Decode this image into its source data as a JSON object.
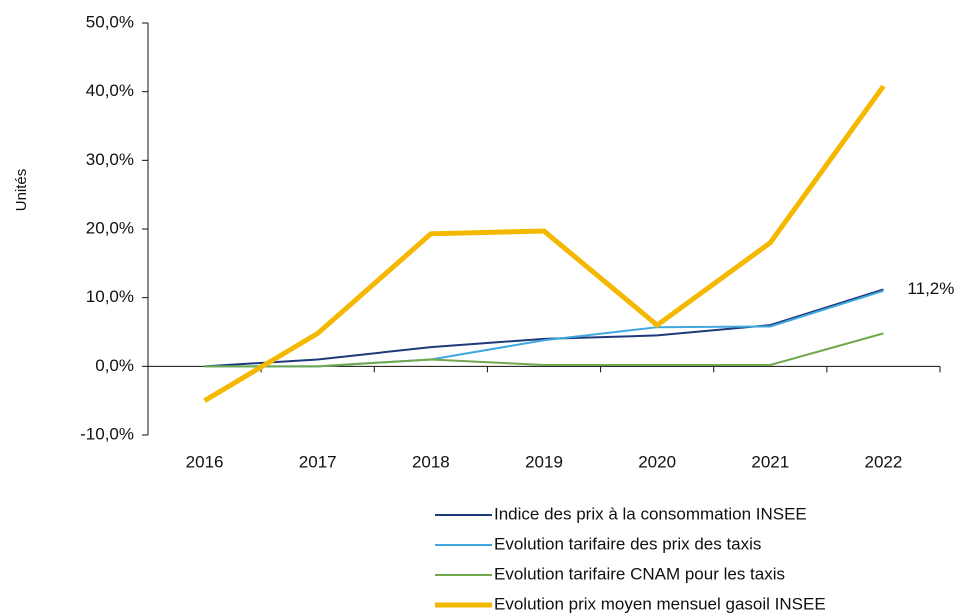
{
  "chart_data": {
    "type": "line",
    "y_label": "Unités",
    "categories": [
      "2016",
      "2017",
      "2018",
      "2019",
      "2020",
      "2021",
      "2022"
    ],
    "series": [
      {
        "name": "Indice des prix à la consommation INSEE",
        "color": "#1f3a7a",
        "width": 2,
        "values": [
          0,
          1.0,
          2.8,
          4.0,
          4.5,
          6.0,
          11.2
        ],
        "value_labels": [
          null,
          null,
          null,
          null,
          null,
          null,
          "11,2%"
        ]
      },
      {
        "name": "Evolution tarifaire des prix des taxis",
        "color": "#3fa9df",
        "width": 2,
        "values": [
          0,
          0,
          1.0,
          3.8,
          5.7,
          5.8,
          11.0
        ]
      },
      {
        "name": "Evolution tarifaire CNAM pour les taxis",
        "color": "#70a84d",
        "width": 2,
        "values": [
          0,
          0,
          1.0,
          0.2,
          0.2,
          0.2,
          4.8
        ]
      },
      {
        "name": "Evolution prix moyen mensuel gasoil INSEE",
        "color": "#f5b800",
        "width": 5,
        "values": [
          -5.0,
          4.8,
          19.3,
          19.7,
          6.0,
          18.0,
          40.8
        ]
      }
    ],
    "ylim": [
      -10,
      50
    ],
    "yticks": [
      {
        "value": -10,
        "label": "-10,0%"
      },
      {
        "value": 0,
        "label": "0,0%"
      },
      {
        "value": 10,
        "label": "10,0%"
      },
      {
        "value": 20,
        "label": "20,0%"
      },
      {
        "value": 30,
        "label": "30,0%"
      },
      {
        "value": 40,
        "label": "40,0%"
      },
      {
        "value": 50,
        "label": "50,0%"
      }
    ],
    "grid": false,
    "legend": "bottom-right"
  }
}
